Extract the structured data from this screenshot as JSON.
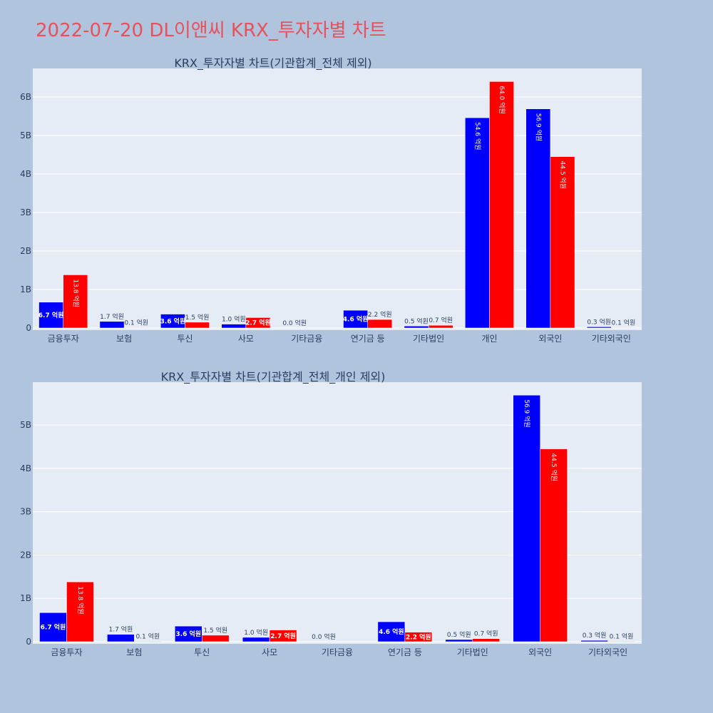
{
  "title": "2022-07-20 DL이앤씨 KRX_투자자별 차트",
  "colors": {
    "background": "#b0c4de",
    "plot_bg": "#e5ecf6",
    "title": "#e8505b",
    "buy": "#0000ff",
    "sell": "#ff0000"
  },
  "chart_data": [
    {
      "type": "bar",
      "title": "KRX_투자자별 차트(기관합계_전체 제외)",
      "categories": [
        "금융투자",
        "보험",
        "투신",
        "사모",
        "기타금융",
        "연기금 등",
        "기타법인",
        "개인",
        "외국인",
        "기타외국인"
      ],
      "series": [
        {
          "color": "#0000ff",
          "values": [
            670000000,
            170000000,
            360000000,
            100000000,
            0,
            460000000,
            50000000,
            5460000000,
            5690000000,
            30000000
          ],
          "labels": [
            "6.7 억원",
            "1.7 억원",
            "3.6 억원",
            "1.0 억원",
            "0.0 억원",
            "4.6 억원",
            "0.5 억원",
            "54.6 억원",
            "56.9 억원",
            "0.3 억원"
          ]
        },
        {
          "color": "#ff0000",
          "values": [
            1380000000,
            10000000,
            150000000,
            270000000,
            0,
            220000000,
            70000000,
            6400000000,
            4450000000,
            10000000
          ],
          "labels": [
            "13.8 억원",
            "0.1 억원",
            "1.5 억원",
            "2.7 억원",
            "",
            "2.2 억원",
            "0.7 억원",
            "64.0 억원",
            "44.5 억원",
            "0.1 억원"
          ]
        }
      ],
      "yticks": [
        0,
        1000000000,
        2000000000,
        3000000000,
        4000000000,
        5000000000,
        6000000000
      ],
      "ytick_labels": [
        "0",
        "1B",
        "2B",
        "3B",
        "4B",
        "5B",
        "6B"
      ],
      "ylim": [
        0,
        6740000000
      ],
      "grid": true
    },
    {
      "type": "bar",
      "title": "KRX_투자자별 차트(기관합계_전체_개인 제외)",
      "categories": [
        "금융투자",
        "보험",
        "투신",
        "사모",
        "기타금융",
        "연기금 등",
        "기타법인",
        "외국인",
        "기타외국인"
      ],
      "series": [
        {
          "color": "#0000ff",
          "values": [
            670000000,
            170000000,
            360000000,
            100000000,
            0,
            460000000,
            50000000,
            5690000000,
            30000000
          ],
          "labels": [
            "6.7 억원",
            "1.7 억원",
            "3.6 억원",
            "1.0 억원",
            "0.0 억원",
            "4.6 억원",
            "0.5 억원",
            "56.9 억원",
            "0.3 억원"
          ]
        },
        {
          "color": "#ff0000",
          "values": [
            1380000000,
            10000000,
            150000000,
            270000000,
            0,
            220000000,
            70000000,
            4450000000,
            10000000
          ],
          "labels": [
            "13.8 억원",
            "0.1 억원",
            "1.5 억원",
            "2.7 억원",
            "",
            "2.2 억원",
            "0.7 억원",
            "44.5 억원",
            "0.1 억원"
          ]
        }
      ],
      "yticks": [
        0,
        1000000000,
        2000000000,
        3000000000,
        4000000000,
        5000000000
      ],
      "ytick_labels": [
        "0",
        "1B",
        "2B",
        "3B",
        "4B",
        "5B"
      ],
      "ylim": [
        0,
        5990000000
      ],
      "grid": true
    }
  ]
}
